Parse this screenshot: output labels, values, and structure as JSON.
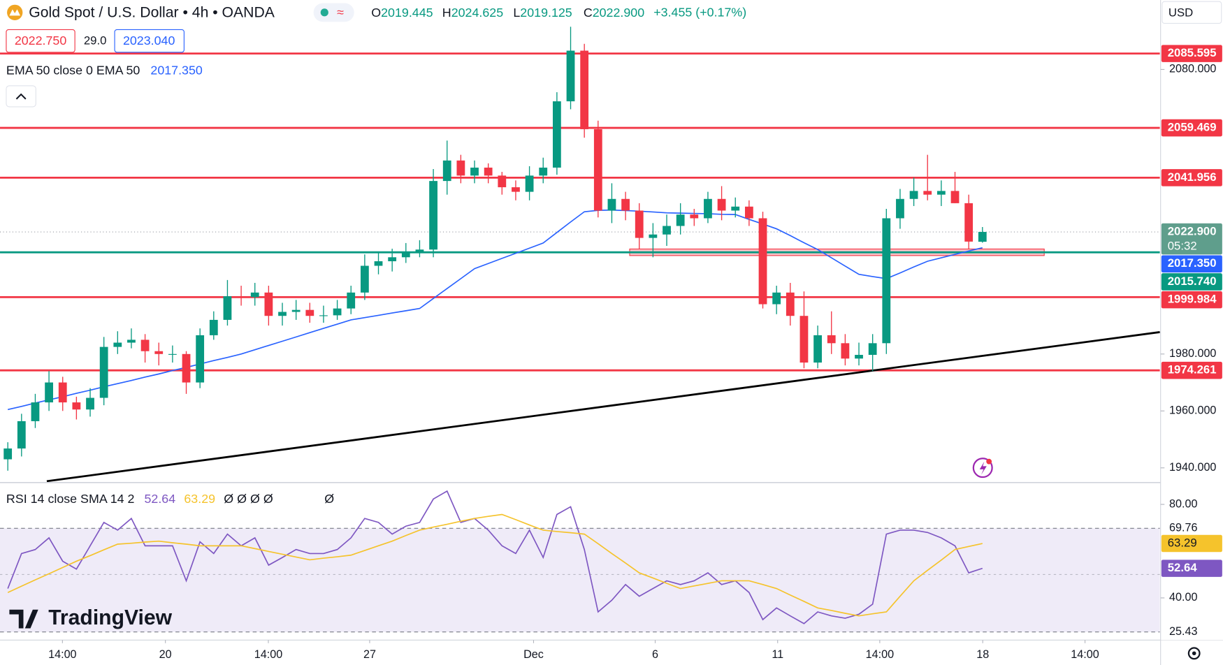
{
  "header": {
    "symbol": "Gold Spot / U.S. Dollar • 4h • OANDA",
    "ohlc": [
      {
        "key": "O",
        "value": "2019.445"
      },
      {
        "key": "H",
        "value": "2024.625"
      },
      {
        "key": "L",
        "value": "2019.125"
      },
      {
        "key": "C",
        "value": "2022.900"
      }
    ],
    "change": "+3.455 (+0.17%)",
    "bid": "2022.750",
    "spread": "29.0",
    "ask": "2023.040",
    "currency": "USD"
  },
  "brand": "TradingView",
  "chart_data": [
    {
      "type": "candlestick",
      "up_color": "#089981",
      "down_color": "#f23645",
      "open": [
        1943,
        1946.8,
        1956.4,
        1963,
        1970,
        1963,
        1960.5,
        1964.6,
        1982.5,
        1984,
        1985,
        1981,
        1980,
        1980,
        1970,
        1986.6,
        1992,
        2000.3,
        2000,
        2001.6,
        1993.4,
        1994.8,
        1995.5,
        1993.4,
        1993.6,
        1996,
        2001.6,
        2011,
        2012.6,
        2014,
        2016,
        2016.7,
        2040.8,
        2048,
        2042.7,
        2045.5,
        2042.7,
        2038.6,
        2037,
        2042.7,
        2045.5,
        2068.8,
        2086.6,
        2059,
        2030.4,
        2034.5,
        2030.4,
        2020.8,
        2022,
        2025,
        2029,
        2027.7,
        2034.5,
        2030.4,
        2031.8,
        2027.7,
        1997.5,
        2001.6,
        1993.4,
        1977,
        1986.6,
        1983.8,
        1978.4,
        1979.7,
        1983.8,
        2027.7,
        2034.5,
        2037.3,
        2036,
        2037.3,
        2033,
        2019.445
      ],
      "high": [
        1949,
        1959,
        1966,
        1974,
        1972,
        1965,
        1968,
        1986,
        1988,
        1989,
        1987,
        1984,
        1983,
        1981,
        1989,
        1995,
        2006,
        2004,
        2005,
        2004,
        1998,
        1999,
        1998,
        1997,
        1999,
        2004,
        2015,
        2016,
        2017,
        2019,
        2020,
        2045,
        2055,
        2050,
        2048,
        2047,
        2044,
        2041,
        2046,
        2049,
        2072,
        2095,
        2089,
        2062,
        2040,
        2037,
        2033,
        2026,
        2029,
        2033,
        2031,
        2037,
        2039,
        2035,
        2034,
        2030,
        2004,
        2005,
        2002,
        1990,
        1995,
        1987,
        1984,
        1987,
        2031,
        2038,
        2042,
        2050,
        2041,
        2044,
        2036,
        2024.625
      ],
      "low": [
        1939,
        1944,
        1954,
        1960,
        1960,
        1957,
        1958,
        1962,
        1980,
        1982,
        1977,
        1976,
        1977,
        1966,
        1968,
        1985,
        1990,
        1997,
        1997,
        1990,
        1990,
        1992,
        1991,
        1991,
        1992,
        1994,
        1999,
        2008,
        2009,
        2012,
        2014,
        2014,
        2036,
        2040,
        2040,
        2040,
        2036,
        2034,
        2034,
        2040,
        2043,
        2066,
        2056,
        2028,
        2026,
        2027,
        2017,
        2014,
        2018,
        2022,
        2025,
        2026,
        2027,
        2028,
        2025,
        1996,
        1994,
        1990,
        1975,
        1975,
        1980,
        1976,
        1976,
        1974,
        1980,
        2024,
        2032,
        2034,
        2032,
        2033,
        2017,
        2019.125
      ],
      "close": [
        1946.8,
        1956.4,
        1963,
        1970,
        1963,
        1960.5,
        1964.6,
        1982.5,
        1984,
        1985,
        1981,
        1980,
        1980,
        1970,
        1986.6,
        1992,
        2000.3,
        2000,
        2001.6,
        1993.4,
        1994.8,
        1995.5,
        1993.4,
        1993.6,
        1996,
        2001.6,
        2011,
        2012.6,
        2014,
        2016,
        2016.7,
        2040.8,
        2048,
        2042.7,
        2045.5,
        2042.7,
        2038.6,
        2037,
        2042.7,
        2045.5,
        2068.8,
        2086.6,
        2059,
        2030.4,
        2034.5,
        2030.4,
        2020.8,
        2022,
        2025,
        2029,
        2027.7,
        2034.5,
        2030.4,
        2031.8,
        2027.7,
        1997.5,
        2001.6,
        1993.4,
        1977,
        1986.6,
        1983.8,
        1978.4,
        1979.7,
        1983.8,
        2027.7,
        2034.5,
        2037.3,
        2036,
        2037.3,
        2033,
        2019.5,
        2022.9
      ],
      "series": [
        {
          "name": "EMA 50 close 0 EMA 50",
          "color": "#2962ff",
          "last_label": "2017.350",
          "values": [
            1960.5,
            1961.6,
            1962.8,
            1963.9,
            1965.0,
            1966.2,
            1967.3,
            1968.5,
            1969.6,
            1970.7,
            1971.9,
            1973,
            1974.2,
            1975.3,
            1976.5,
            1977.7,
            1978.8,
            1980,
            1981.5,
            1983,
            1984.5,
            1986,
            1987.5,
            1989,
            1990.5,
            1992,
            1992.8,
            1993.6,
            1994.4,
            1995.2,
            1996,
            1999.5,
            2003,
            2006.5,
            2010,
            2011.8,
            2013.6,
            2015.4,
            2017.2,
            2019,
            2022.7,
            2026.4,
            2030,
            2030.5,
            2030.6,
            2030.4,
            2030.2,
            2029.9,
            2029.6,
            2029.5,
            2029.4,
            2029.3,
            2029.1,
            2029,
            2027.3,
            2025.7,
            2024,
            2021.6,
            2019.1,
            2016.7,
            2013.8,
            2010.9,
            2008,
            2007.2,
            2006.5,
            2008.5,
            2010.6,
            2012.6,
            2013.8,
            2015,
            2016.2,
            2017.35
          ]
        }
      ],
      "xlim": [
        -0.568,
        83.92
      ],
      "xticks": [
        {
          "value": 3.98,
          "label": "14:00"
        },
        {
          "value": 11.48,
          "label": "20"
        },
        {
          "value": 18.98,
          "label": "14:00"
        },
        {
          "value": 26.36,
          "label": "27"
        },
        {
          "value": 38.3,
          "label": "Dec"
        },
        {
          "value": 47.16,
          "label": "6"
        },
        {
          "value": 56.08,
          "label": "11"
        },
        {
          "value": 63.52,
          "label": "14:00"
        },
        {
          "value": 71.02,
          "label": "18"
        },
        {
          "value": 78.47,
          "label": "14:00"
        }
      ],
      "ylim": [
        1935.1,
        2104.4
      ],
      "yticks": [
        {
          "value": 2080,
          "label": "2080.000"
        },
        {
          "value": 1980,
          "label": "1980.000"
        },
        {
          "value": 1960,
          "label": "1960.000"
        },
        {
          "value": 1940,
          "label": "1940.000"
        }
      ],
      "levels": [
        {
          "value": 2085.595,
          "color": "#f23645"
        },
        {
          "value": 2059.469,
          "color": "#f23645"
        },
        {
          "value": 2041.956,
          "color": "#f23645"
        },
        {
          "value": 2015.74,
          "label": "2015.740",
          "color": "#089981"
        },
        {
          "value": 1999.984,
          "color": "#f23645"
        },
        {
          "value": 1974.261,
          "color": "#f23645"
        }
      ],
      "last_price": {
        "value": 2022.9,
        "label": "2022.900",
        "countdown": "05:32",
        "color": "#5f9e8c"
      },
      "zone": {
        "low": 2014.6,
        "high": 2016.9,
        "start": 45.3,
        "end": 75.5,
        "color": "#f23645"
      },
      "trendline": {
        "x": [
          2.84,
          83.92
        ],
        "y": [
          1935.3,
          1987.7
        ],
        "color": "#000000"
      }
    },
    {
      "type": "line",
      "title": "RSI 14 close SMA 14 2",
      "extra_legend": [
        "Ø Ø Ø Ø",
        "Ø"
      ],
      "series": [
        {
          "color": "#7e57c2",
          "values": [
            44,
            59,
            60.7,
            65.7,
            55.7,
            52.3,
            62.3,
            72.3,
            69,
            74,
            62.3,
            62.3,
            62.3,
            47.3,
            64,
            59,
            67.3,
            62.3,
            65.7,
            54,
            57.3,
            60.7,
            59,
            59,
            60.7,
            65.7,
            74,
            72.3,
            67.3,
            70.7,
            72.3,
            82.3,
            85.7,
            72.3,
            74,
            69,
            62.3,
            59,
            69,
            57.3,
            75.7,
            79,
            60.7,
            34,
            39,
            45.7,
            40.7,
            44,
            47.3,
            45.7,
            47.3,
            50.7,
            45.7,
            47.3,
            42.3,
            30.7,
            35.7,
            32.3,
            29,
            34,
            32.3,
            31.3,
            33,
            37.3,
            67.3,
            69,
            69,
            68,
            65.7,
            62.3,
            50.7,
            52.64
          ]
        },
        {
          "color": "#f5c32c",
          "values": [
            42.3,
            45,
            47.7,
            50.3,
            53,
            55.7,
            58.1,
            60.6,
            63,
            63.4,
            63.9,
            64.3,
            63.6,
            63,
            62.3,
            62.3,
            62.3,
            62.3,
            61.1,
            59.9,
            58.7,
            57.5,
            56.3,
            57,
            57.6,
            58.3,
            60.3,
            62.3,
            64.3,
            66.7,
            69,
            70.3,
            71.5,
            72.8,
            74,
            74.9,
            75.7,
            73.5,
            71.2,
            69,
            68.4,
            67.9,
            67.3,
            63.2,
            59,
            54.9,
            50.7,
            48.5,
            46.2,
            44,
            45.1,
            46.2,
            47.3,
            47.3,
            47.3,
            45.7,
            44,
            41.2,
            38.5,
            35.7,
            34.6,
            33.4,
            32.3,
            33.2,
            34,
            40.7,
            47.3,
            51.8,
            56.2,
            60.7,
            62,
            63.29
          ]
        }
      ],
      "ylim": [
        22.3,
        89
      ],
      "yticks": [
        {
          "value": 80,
          "label": "80.00"
        },
        {
          "value": 40,
          "label": "40.00"
        }
      ],
      "bands": [
        69.76,
        25.43
      ],
      "midline": 50,
      "band_color": "#7e57c2"
    }
  ]
}
